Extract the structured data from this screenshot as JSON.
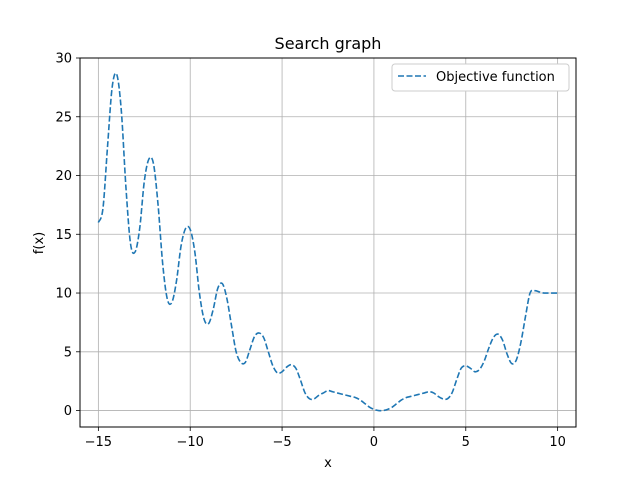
{
  "chart_data": {
    "type": "line",
    "title": "Search graph",
    "xlabel": "x",
    "ylabel": "f(x)",
    "xlim": [
      -16,
      11
    ],
    "ylim": [
      -1.4,
      30
    ],
    "xticks": [
      -15,
      -10,
      -5,
      0,
      5,
      10
    ],
    "xtick_labels": [
      "−15",
      "−10",
      "−5",
      "0",
      "5",
      "10"
    ],
    "yticks": [
      0,
      5,
      10,
      15,
      20,
      25,
      30
    ],
    "ytick_labels": [
      "0",
      "5",
      "10",
      "15",
      "20",
      "25",
      "30"
    ],
    "grid": true,
    "legend_position": "top-right",
    "series": [
      {
        "name": "Objective function",
        "color": "#1f77b4",
        "line_style": "dashed",
        "x": [
          -15.0,
          -14.75,
          -14.5,
          -14.25,
          -14.0,
          -13.75,
          -13.5,
          -13.25,
          -13.0,
          -12.75,
          -12.5,
          -12.25,
          -12.0,
          -11.75,
          -11.5,
          -11.25,
          -11.0,
          -10.75,
          -10.5,
          -10.25,
          -10.0,
          -9.75,
          -9.5,
          -9.25,
          -9.0,
          -8.75,
          -8.5,
          -8.25,
          -8.0,
          -7.75,
          -7.5,
          -7.25,
          -7.0,
          -6.75,
          -6.5,
          -6.25,
          -6.0,
          -5.75,
          -5.5,
          -5.25,
          -5.0,
          -4.75,
          -4.5,
          -4.25,
          -4.0,
          -3.75,
          -3.5,
          -3.25,
          -3.0,
          -2.75,
          -2.5,
          -2.25,
          -2.0,
          -1.75,
          -1.5,
          -1.25,
          -1.0,
          -0.75,
          -0.5,
          -0.25,
          0.0,
          0.25,
          0.5,
          0.75,
          1.0,
          1.25,
          1.5,
          1.75,
          2.0,
          2.25,
          2.5,
          2.75,
          3.0,
          3.25,
          3.5,
          3.75,
          4.0,
          4.25,
          4.5,
          4.75,
          5.0,
          5.25,
          5.5,
          5.75,
          6.0,
          6.25,
          6.5,
          6.75,
          7.0,
          7.25,
          7.5,
          7.75,
          8.0,
          8.25,
          8.5,
          8.75,
          9.0,
          9.25,
          9.5,
          9.75,
          10.0
        ],
        "y": [
          16.0,
          17.2,
          22.5,
          27.5,
          28.6,
          25.5,
          19.0,
          14.2,
          13.5,
          15.5,
          19.5,
          21.4,
          21.0,
          17.5,
          12.5,
          9.5,
          9.2,
          11.0,
          14.0,
          15.5,
          15.4,
          13.5,
          10.0,
          7.8,
          7.4,
          8.6,
          10.4,
          10.8,
          9.5,
          7.2,
          5.0,
          4.1,
          4.1,
          5.2,
          6.3,
          6.6,
          6.2,
          5.0,
          3.8,
          3.2,
          3.3,
          3.7,
          3.9,
          3.6,
          2.6,
          1.5,
          1.0,
          1.0,
          1.3,
          1.5,
          1.7,
          1.6,
          1.5,
          1.4,
          1.3,
          1.2,
          1.1,
          0.9,
          0.6,
          0.3,
          0.1,
          0.0,
          0.0,
          0.1,
          0.3,
          0.6,
          0.9,
          1.1,
          1.2,
          1.3,
          1.4,
          1.5,
          1.6,
          1.5,
          1.2,
          1.0,
          1.0,
          1.5,
          2.6,
          3.6,
          3.8,
          3.6,
          3.3,
          3.5,
          4.2,
          5.3,
          6.2,
          6.5,
          6.0,
          4.8,
          4.0,
          4.3,
          5.8,
          8.0,
          10.0,
          10.2,
          10.1,
          10.0,
          10.0,
          10.0,
          10.0
        ]
      }
    ]
  }
}
